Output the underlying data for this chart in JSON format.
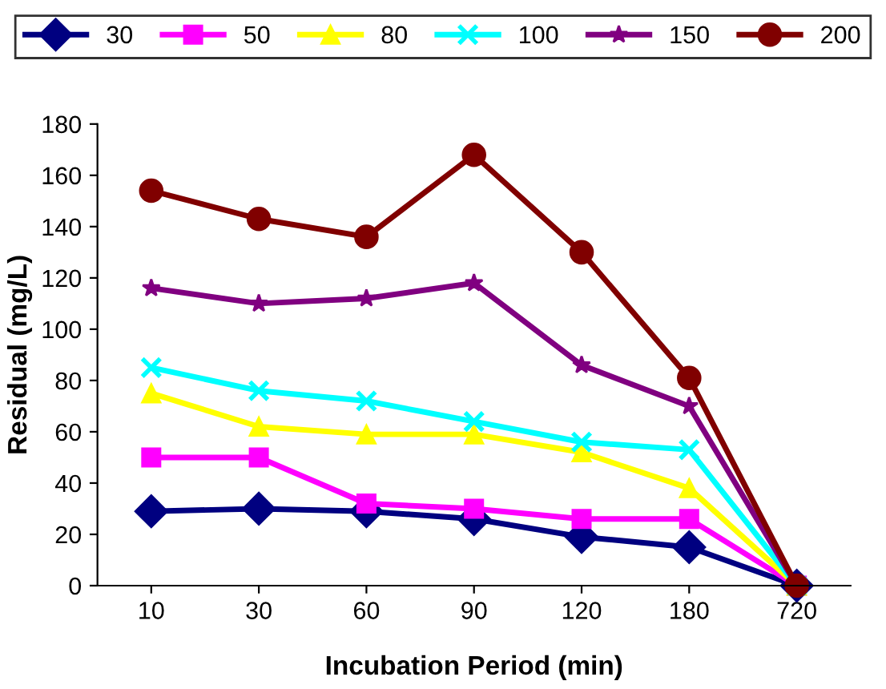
{
  "chart_data": {
    "type": "line",
    "xlabel": "Incubation Period (min)",
    "ylabel": "Residual (mg/L)",
    "categories": [
      "10",
      "30",
      "60",
      "90",
      "120",
      "180",
      "720"
    ],
    "series": [
      {
        "name": "30",
        "color": "#000080",
        "marker": "diamond",
        "values": [
          29,
          30,
          29,
          26,
          19,
          15,
          0
        ]
      },
      {
        "name": "50",
        "color": "#ff00ff",
        "marker": "square",
        "values": [
          50,
          50,
          32,
          30,
          26,
          26,
          0
        ]
      },
      {
        "name": "80",
        "color": "#ffff00",
        "marker": "triangle",
        "values": [
          75,
          62,
          59,
          59,
          52,
          38,
          0
        ]
      },
      {
        "name": "100",
        "color": "#00ffff",
        "marker": "cross",
        "values": [
          85,
          76,
          72,
          64,
          56,
          53,
          0
        ]
      },
      {
        "name": "150",
        "color": "#800080",
        "marker": "star",
        "values": [
          116,
          110,
          112,
          118,
          86,
          70,
          0
        ]
      },
      {
        "name": "200",
        "color": "#800000",
        "marker": "circle",
        "values": [
          154,
          143,
          136,
          168,
          130,
          81,
          0
        ]
      }
    ],
    "ylim": [
      0,
      180
    ],
    "yticks": [
      0,
      20,
      40,
      60,
      80,
      100,
      120,
      140,
      160,
      180
    ],
    "grid": false,
    "legend": "top",
    "line_style": "solid"
  }
}
